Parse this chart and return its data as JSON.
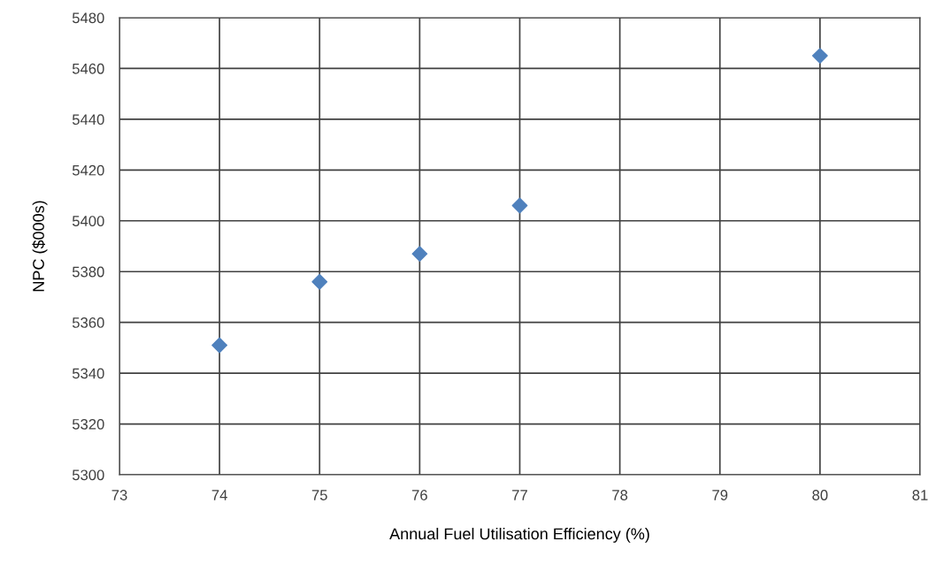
{
  "chart_data": {
    "type": "scatter",
    "xlabel": "Annual Fuel Utilisation Efficiency (%)",
    "ylabel": "NPC ($000s)",
    "x": [
      74,
      75,
      76,
      77,
      80
    ],
    "series": [
      {
        "color": "#4f81bd",
        "values": [
          5351,
          5376,
          5387,
          5406,
          5465
        ]
      }
    ],
    "xlim": [
      73,
      81
    ],
    "xticks": [
      73,
      74,
      75,
      76,
      77,
      78,
      79,
      80,
      81
    ],
    "ylim": [
      5300,
      5480
    ],
    "yticks": [
      5300,
      5320,
      5340,
      5360,
      5380,
      5400,
      5420,
      5440,
      5460,
      5480
    ],
    "grid": true,
    "marker": "diamond"
  }
}
